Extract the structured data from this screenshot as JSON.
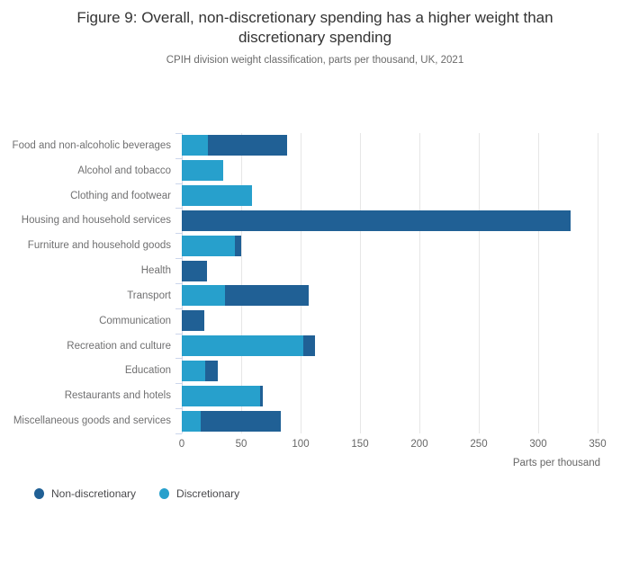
{
  "chart_data": {
    "type": "bar",
    "orientation": "horizontal",
    "stacked": true,
    "title": "Figure 9: Overall, non-discretionary spending has a higher weight than discretionary spending",
    "subtitle": "CPIH division weight classification, parts per thousand, UK, 2021",
    "categories": [
      "Food and non-alcoholic beverages",
      "Alcohol and tobacco",
      "Clothing and footwear",
      "Housing and household services",
      "Furniture and household goods",
      "Health",
      "Transport",
      "Communication",
      "Recreation and culture",
      "Education",
      "Restaurants and hotels",
      "Miscellaneous goods and services"
    ],
    "series": [
      {
        "name": "Discretionary",
        "color": "#27A0CC",
        "values": [
          22,
          35,
          59,
          0,
          45,
          0,
          36,
          0,
          102,
          20,
          66,
          16
        ]
      },
      {
        "name": "Non-discretionary",
        "color": "#206095",
        "values": [
          67,
          0,
          0,
          327,
          5,
          21,
          71,
          19,
          10,
          10,
          2,
          67
        ]
      }
    ],
    "totals": [
      89,
      35,
      59,
      327,
      50,
      21,
      107,
      19,
      112,
      30,
      68,
      83
    ],
    "xlabel": "Parts per thousand",
    "xlim": [
      0,
      350
    ],
    "xticks": [
      0,
      50,
      100,
      150,
      200,
      250,
      300,
      350
    ],
    "grid": true,
    "legend": {
      "position": "bottom-left",
      "items": [
        {
          "label": "Non-discretionary",
          "color": "#206095"
        },
        {
          "label": "Discretionary",
          "color": "#27A0CC"
        }
      ]
    }
  },
  "colors": {
    "non_discretionary": "#206095",
    "discretionary": "#27A0CC",
    "gridline": "#e6e6e6",
    "axis": "#ccd6eb",
    "title_text": "#333333",
    "label_text": "#707071"
  }
}
